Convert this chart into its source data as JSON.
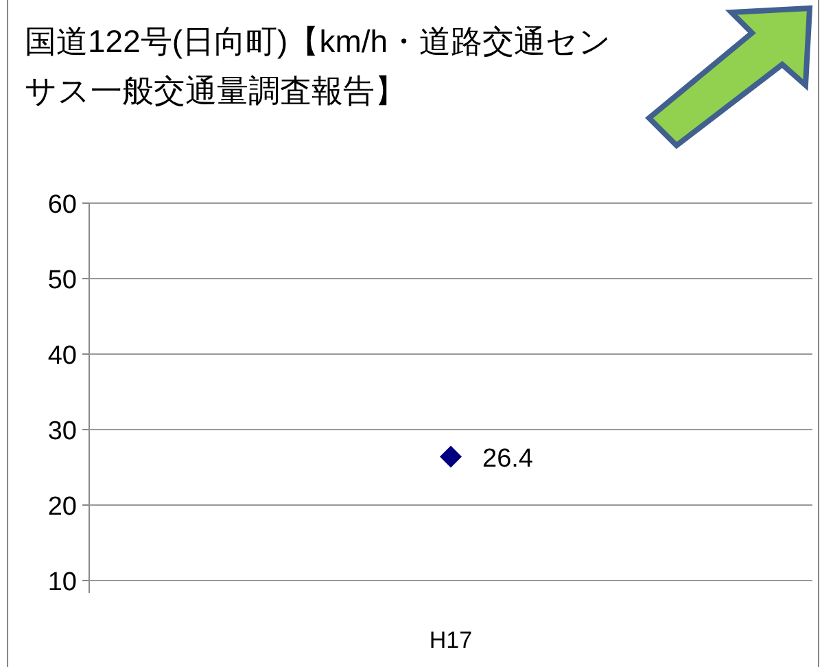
{
  "chart_data": {
    "type": "line",
    "title": "国道122号(日向町)【km/h・道路交通センサス一般交通量調査報告】",
    "categories": [
      "H17"
    ],
    "series": [
      {
        "color": "#000080",
        "values": [
          26.4
        ]
      }
    ],
    "marker": "diamond",
    "data_labels": true,
    "ylim": [
      10,
      60
    ],
    "yticks": [
      10,
      20,
      30,
      40,
      50,
      60
    ],
    "grid": "y"
  }
}
